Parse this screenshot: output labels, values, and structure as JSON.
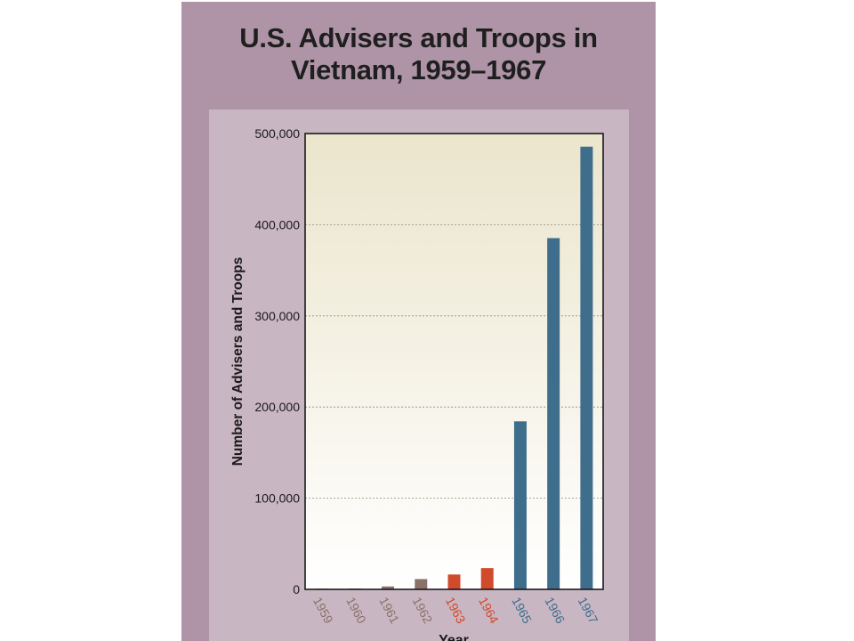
{
  "chart_data": {
    "type": "bar",
    "title_line1": "U.S. Advisers and Troops in",
    "title_line2": "Vietnam, 1959–1967",
    "xlabel": "Year",
    "ylabel": "Number of Advisers and Troops",
    "ylim": [
      0,
      500000
    ],
    "yticks": [
      0,
      100000,
      200000,
      300000,
      400000,
      500000
    ],
    "ytick_labels": [
      "0",
      "100,000",
      "200,000",
      "300,000",
      "400,000",
      "500,000"
    ],
    "grid": true,
    "categories": [
      "1959",
      "1960",
      "1961",
      "1962",
      "1963",
      "1964",
      "1965",
      "1966",
      "1967"
    ],
    "values": [
      760,
      900,
      3200,
      11300,
      16300,
      23300,
      184300,
      385300,
      485600
    ],
    "category_colors": [
      "#8a7268",
      "#8a7268",
      "#8a7268",
      "#8a7268",
      "#d04a2c",
      "#d04a2c",
      "#3f6e8c",
      "#3f6e8c",
      "#3f6e8c"
    ]
  },
  "colors": {
    "panel": "#ae94a6",
    "inner_panel": "#c9b6c3",
    "plot_top": "#ebe5cc",
    "plot_bottom": "#ffffff"
  }
}
